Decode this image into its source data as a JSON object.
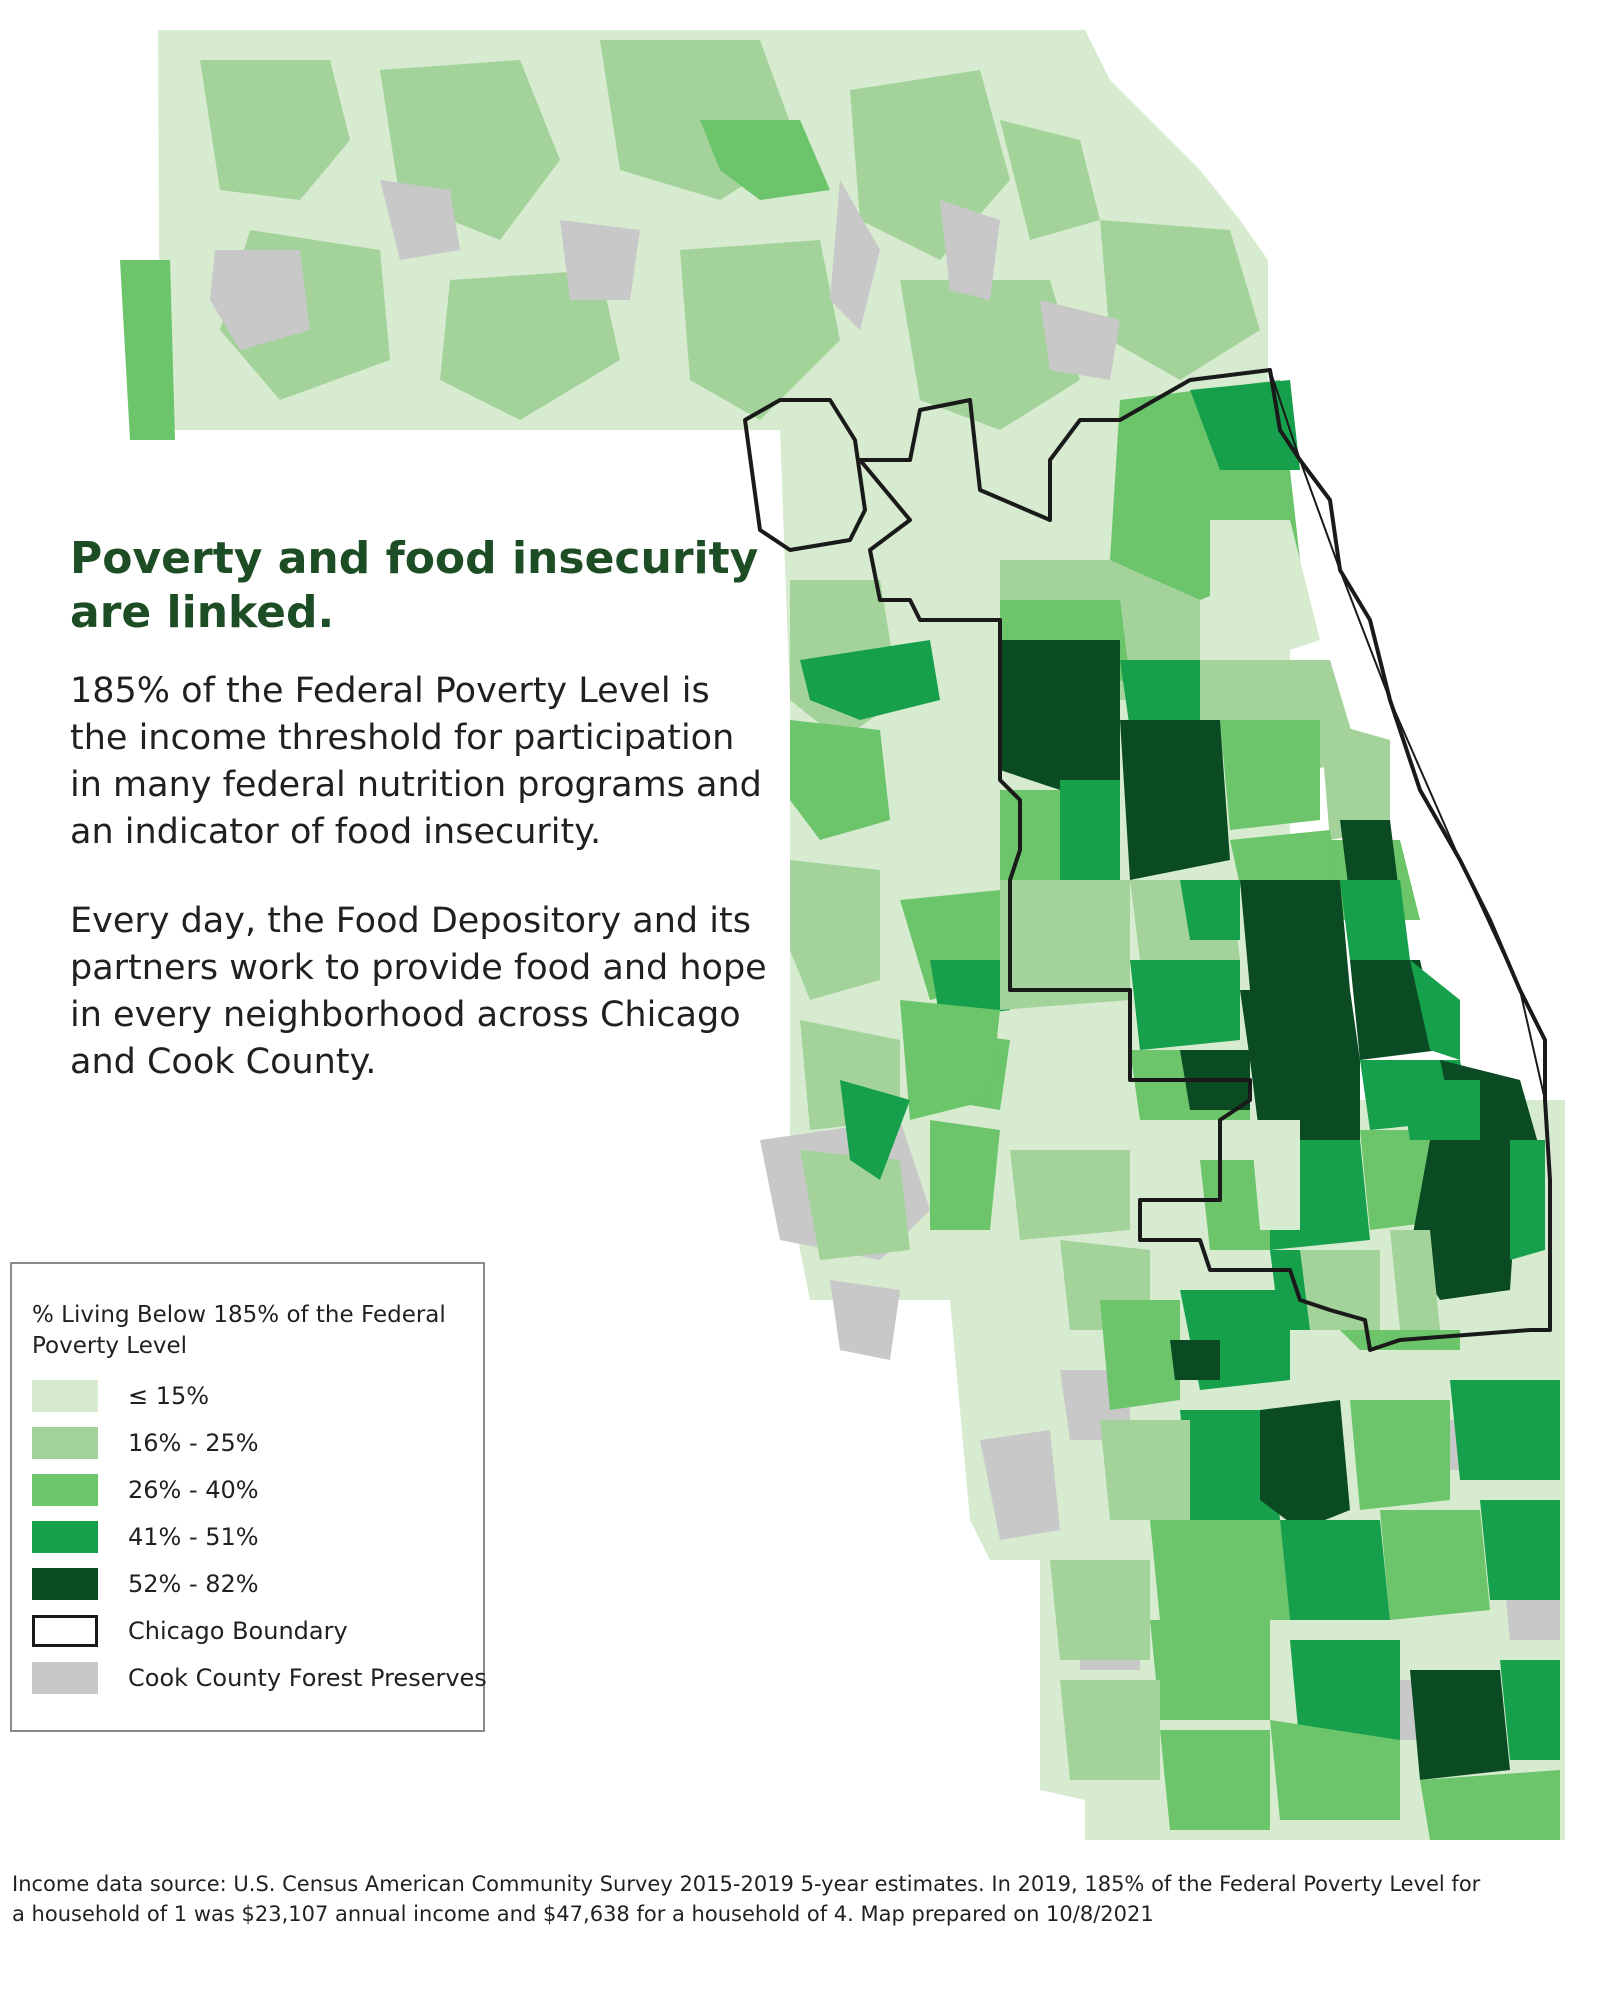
{
  "headline": "Poverty and food insecurity are linked.",
  "paragraphs": [
    "185% of the Federal Poverty Level is the income threshold for participation in many federal nutrition programs and an indicator of food insecurity.",
    "Every day, the Food Depository and its partners work to provide food and hope in every neighborhood across Chicago and Cook County."
  ],
  "legend": {
    "title": "% Living Below 185% of the Federal Poverty Level",
    "items": [
      {
        "label": "≤ 15%",
        "color": "#d6ebcf"
      },
      {
        "label": "16% - 25%",
        "color": "#a3d39b"
      },
      {
        "label": "26% - 40%",
        "color": "#6cc46b"
      },
      {
        "label": "41% - 51%",
        "color": "#16a04c"
      },
      {
        "label": "52% - 82%",
        "color": "#0b4b23"
      },
      {
        "label": "Chicago Boundary",
        "color": "#1a1a1a"
      },
      {
        "label": "Cook County Forest Preserves",
        "color": "#c8c8c9"
      }
    ]
  },
  "source_note": "Income data source: U.S. Census American Community Survey 2015-2019 5-year estimates. In 2019, 185% of the Federal Poverty Level for a household of 1 was $23,107 annual income and $47,638 for a household of 4. Map prepared on 10/8/2021"
}
